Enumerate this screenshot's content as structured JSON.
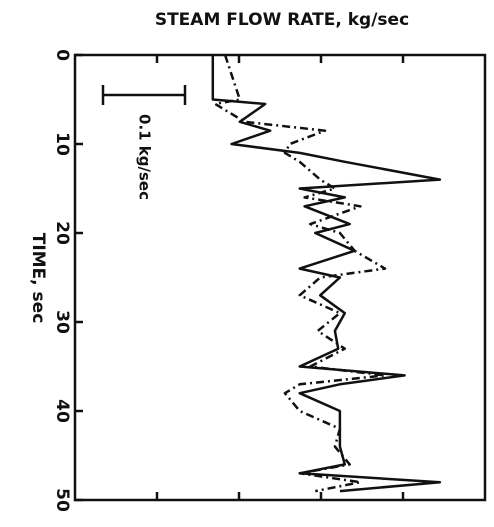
{
  "chart_data": {
    "type": "line",
    "title": "STEAM FLOW RATE, kg/sec",
    "x_label": "TIME, sec",
    "annotation": "0.1 kg/sec",
    "x": [
      0,
      5,
      5.5,
      7.5,
      8.5,
      10,
      11,
      12,
      14,
      15,
      16,
      17,
      19,
      20,
      22,
      24,
      25,
      27,
      29,
      31,
      33,
      35,
      36,
      37,
      38,
      40,
      42,
      44,
      46,
      47,
      48,
      49
    ],
    "series": [
      {
        "name": "solid",
        "color": "#111111",
        "dash": "none",
        "values": [
          0.168,
          0.168,
          0.232,
          0.201,
          0.238,
          0.191,
          0.274,
          0.329,
          0.445,
          0.274,
          0.329,
          0.28,
          0.335,
          0.293,
          0.341,
          0.274,
          0.323,
          0.299,
          0.329,
          0.317,
          0.321,
          0.274,
          0.402,
          0.323,
          0.274,
          0.323,
          0.323,
          0.323,
          0.329,
          0.274,
          0.445,
          0.323
        ]
      },
      {
        "name": "dash-dot",
        "color": "#111111",
        "dash": "8 4 2 4",
        "values": [
          0.183,
          0.201,
          0.171,
          0.207,
          0.305,
          0.262,
          0.256,
          0.274,
          0.299,
          0.317,
          0.28,
          0.348,
          0.287,
          0.323,
          0.341,
          0.378,
          0.299,
          0.274,
          0.323,
          0.296,
          0.329,
          0.287,
          0.378,
          0.274,
          0.256,
          0.274,
          0.323,
          0.317,
          0.335,
          0.274,
          0.348,
          0.293
        ]
      }
    ],
    "xlim": [
      0,
      50
    ],
    "xticks": [
      0,
      10,
      20,
      30,
      40,
      50
    ],
    "ylim": [
      0,
      0.5
    ],
    "yticks": [
      0.1,
      0.2,
      0.3,
      0.4
    ],
    "scale_bar": 0.1
  }
}
